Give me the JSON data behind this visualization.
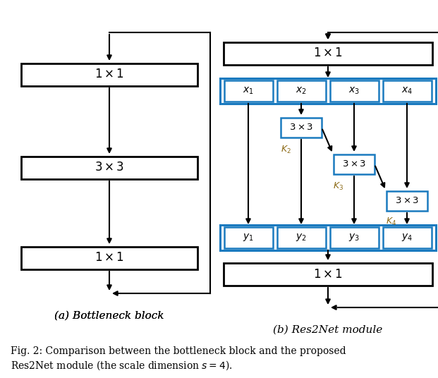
{
  "fig_width": 6.21,
  "fig_height": 5.36,
  "bg_color": "#ffffff",
  "box_edge_black": "#000000",
  "box_edge_blue": "#1a7abf",
  "box_fill": "#ffffff",
  "arrow_color": "#000000",
  "k_label_color": "#8B6914",
  "sub_a_label": "(a) Bottleneck block",
  "sub_b_label": "(b) Res2Net module",
  "fig_caption_line1": "Fig. 2: Comparison between the bottleneck block and the proposed",
  "fig_caption_line2": "Res2Net module (the scale dimension $s = 4$)."
}
